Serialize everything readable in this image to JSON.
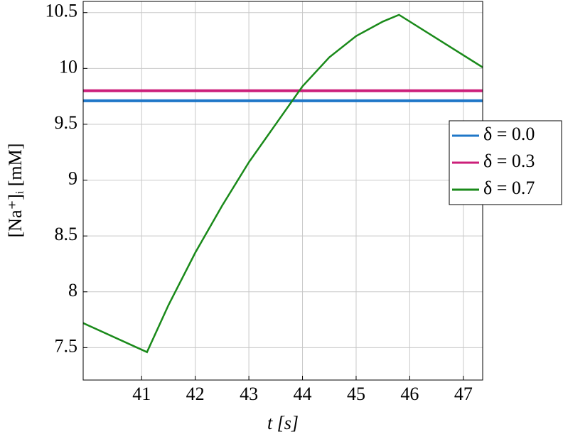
{
  "chart_data": {
    "type": "line",
    "xlabel": "t [s]",
    "ylabel": "[Na⁺]ᵢ [mM]",
    "xlim": [
      39.91,
      47.36
    ],
    "ylim": [
      7.21,
      10.6
    ],
    "xticks": [
      41,
      42,
      43,
      44,
      45,
      46,
      47
    ],
    "yticks": [
      7.5,
      8,
      8.5,
      9,
      9.5,
      10,
      10.5
    ],
    "grid": true,
    "legend": "right",
    "series": [
      {
        "name": "δ = 0.0",
        "color": "#1f77c8",
        "x": [
          39.91,
          47.36
        ],
        "values": [
          9.71,
          9.71
        ]
      },
      {
        "name": "δ = 0.3",
        "color": "#cc1f7a",
        "x": [
          39.91,
          47.36
        ],
        "values": [
          9.8,
          9.8
        ]
      },
      {
        "name": "δ = 0.7",
        "color": "#1a8a1a",
        "x": [
          39.91,
          41.1,
          41.5,
          42,
          42.5,
          43,
          43.5,
          44,
          44.5,
          45,
          45.5,
          45.8,
          47.36
        ],
        "values": [
          7.72,
          7.46,
          7.88,
          8.35,
          8.77,
          9.16,
          9.5,
          9.84,
          10.1,
          10.29,
          10.42,
          10.48,
          10.01
        ]
      }
    ]
  }
}
